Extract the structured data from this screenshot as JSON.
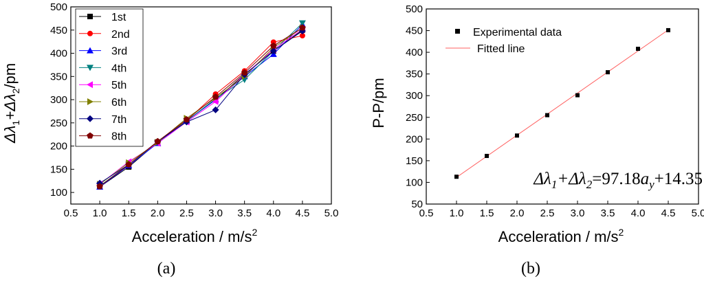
{
  "chart_data": [
    {
      "type": "line",
      "panel_label": "(a)",
      "xlabel": "Acceleration / m/s",
      "xlabel_sup": "2",
      "ylabel_parts": [
        "Δλ",
        "1",
        "+Δλ",
        "2",
        "/pm"
      ],
      "xlim": [
        0.5,
        5.0
      ],
      "ylim": [
        75,
        500
      ],
      "x_ticks": [
        "0.5",
        "1.0",
        "1.5",
        "2.0",
        "2.5",
        "3.0",
        "3.5",
        "4.0",
        "4.5",
        "5.0"
      ],
      "y_ticks": [
        "100",
        "150",
        "200",
        "250",
        "300",
        "350",
        "400",
        "450",
        "500"
      ],
      "x": [
        1.0,
        1.5,
        2.0,
        2.5,
        3.0,
        3.5,
        4.0,
        4.5
      ],
      "series": [
        {
          "name": "1st",
          "color": "#000000",
          "marker": "square",
          "values": [
            112,
            155,
            208,
            255,
            300,
            355,
            405,
            450
          ]
        },
        {
          "name": "2nd",
          "color": "#ff0000",
          "marker": "circle",
          "values": [
            112,
            160,
            207,
            255,
            312,
            362,
            424,
            438
          ]
        },
        {
          "name": "3rd",
          "color": "#0000ff",
          "marker": "tri-up",
          "values": [
            112,
            158,
            206,
            254,
            300,
            350,
            398,
            462
          ]
        },
        {
          "name": "4th",
          "color": "#008080",
          "marker": "tri-down",
          "values": [
            114,
            160,
            208,
            254,
            302,
            343,
            405,
            465
          ]
        },
        {
          "name": "5th",
          "color": "#ff00ff",
          "marker": "tri-left",
          "values": [
            118,
            166,
            206,
            252,
            296,
            354,
            408,
            452
          ]
        },
        {
          "name": "6th",
          "color": "#808000",
          "marker": "tri-right",
          "values": [
            118,
            164,
            208,
            260,
            304,
            350,
            412,
            455
          ]
        },
        {
          "name": "7th",
          "color": "#000080",
          "marker": "diamond",
          "values": [
            120,
            160,
            210,
            252,
            278,
            354,
            405,
            448
          ]
        },
        {
          "name": "8th",
          "color": "#800000",
          "marker": "pentagon",
          "values": [
            113,
            160,
            210,
            257,
            306,
            358,
            416,
            455
          ]
        }
      ]
    },
    {
      "type": "scatter",
      "panel_label": "(b)",
      "xlabel": "Acceleration / m/s",
      "xlabel_sup": "2",
      "ylabel": "P-P/pm",
      "xlim": [
        0.5,
        5.0
      ],
      "ylim": [
        50,
        500
      ],
      "x_ticks": [
        "0.5",
        "1.0",
        "1.5",
        "2.0",
        "2.5",
        "3.0",
        "3.5",
        "4.0",
        "4.5",
        "5.0"
      ],
      "y_ticks": [
        "50",
        "100",
        "150",
        "200",
        "250",
        "300",
        "350",
        "400",
        "450",
        "500"
      ],
      "series": [
        {
          "name": "Experimental data",
          "color": "#000000",
          "marker": "square",
          "x": [
            1.0,
            1.5,
            2.0,
            2.5,
            3.0,
            3.5,
            4.0,
            4.5
          ],
          "values": [
            113,
            161,
            208,
            255,
            301,
            354,
            408,
            451
          ]
        },
        {
          "name": "Fitted line",
          "color": "#ff6060",
          "kind": "line",
          "x": [
            1.0,
            4.5
          ],
          "values": [
            111.53,
            451.66
          ]
        }
      ],
      "equation_parts": [
        "Δλ",
        "1",
        "+Δλ",
        "2",
        "=97.18",
        "a",
        "y",
        "+14.35"
      ]
    }
  ]
}
